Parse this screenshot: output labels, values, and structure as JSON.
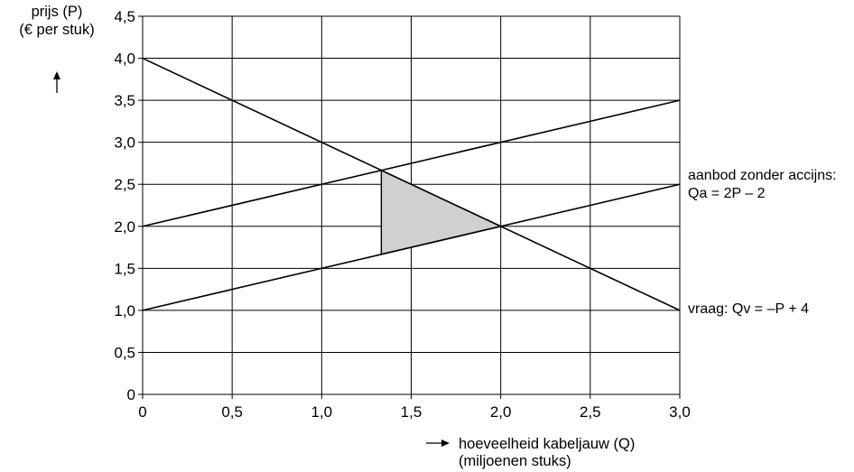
{
  "chart_data": {
    "type": "line",
    "ylabel": [
      "prijs (P)",
      "(€ per stuk)"
    ],
    "xlabel": [
      "hoeveelheid kabeljauw (Q)",
      "(miljoenen stuks)"
    ],
    "xlim": [
      0,
      3.0
    ],
    "ylim": [
      0,
      4.5
    ],
    "x_ticks": [
      0,
      0.5,
      1.0,
      1.5,
      2.0,
      2.5,
      3.0
    ],
    "x_tick_labels": [
      "0",
      "0,5",
      "1,0",
      "1,5",
      "2,0",
      "2,5",
      "3,0"
    ],
    "y_ticks": [
      0,
      0.5,
      1.0,
      1.5,
      2.0,
      2.5,
      3.0,
      3.5,
      4.0,
      4.5
    ],
    "y_tick_labels": [
      "0",
      "0,5",
      "1,0",
      "1,5",
      "2,0",
      "2,5",
      "3,0",
      "3,5",
      "4,0",
      "4,5"
    ],
    "grid": true,
    "series": [
      {
        "name": "vraag: Qv = –P + 4",
        "x": [
          0,
          3.0
        ],
        "y": [
          4.0,
          1.0
        ]
      },
      {
        "name": "aanbod zonder accijns: Qa = 2P – 2",
        "x": [
          0,
          3.0
        ],
        "y": [
          1.0,
          2.5
        ]
      },
      {
        "x": [
          0,
          3.0
        ],
        "y": [
          2.0,
          3.5
        ]
      }
    ],
    "shaded_area": {
      "x": [
        1.333,
        2.0,
        1.333
      ],
      "y": [
        2.667,
        2.0,
        1.667
      ],
      "color": "#d0d0d0"
    },
    "annotations": {
      "supply": [
        "aanbod zonder accijns:",
        "Qa = 2P – 2"
      ],
      "demand": "vraag: Qv = –P + 4"
    },
    "colors": {
      "line": "#000000",
      "grid": "#000000",
      "fill": "#d0d0d0"
    }
  }
}
